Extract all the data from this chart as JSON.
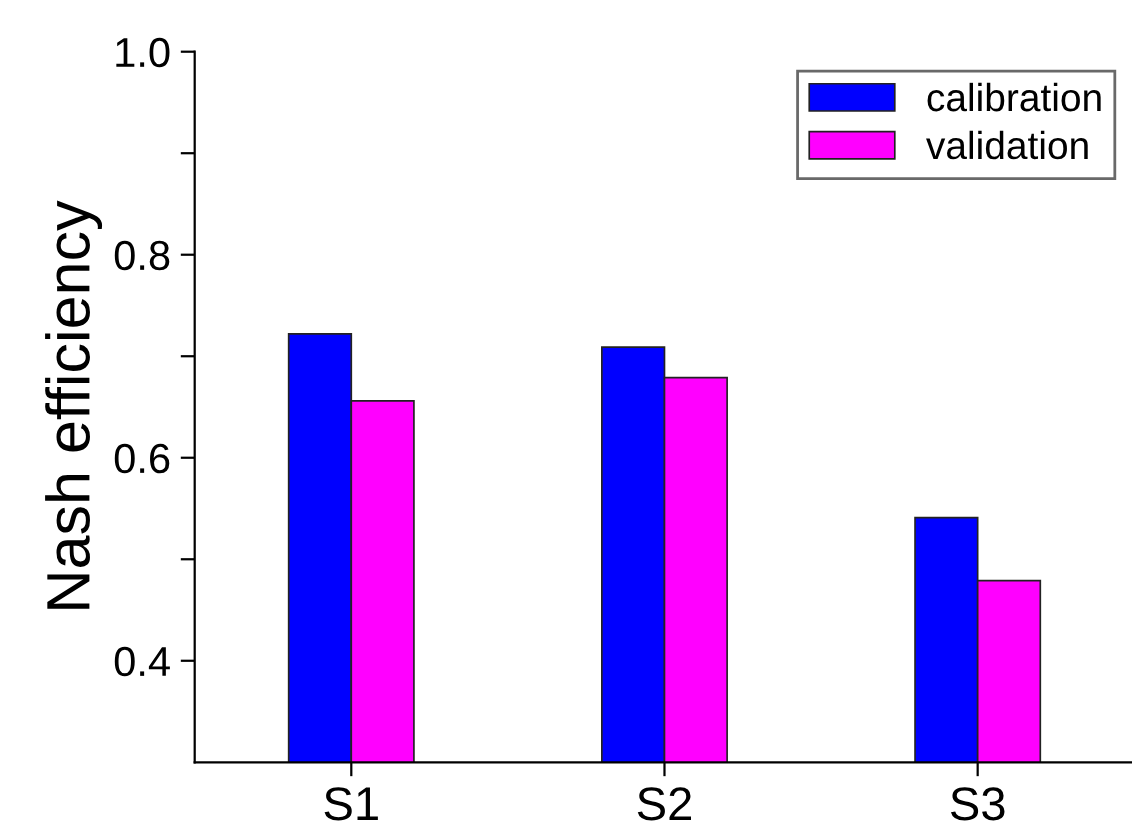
{
  "chart_data": {
    "type": "bar",
    "ylabel": "Nash efficiency",
    "categories": [
      "S1",
      "S2",
      "S3"
    ],
    "series": [
      {
        "name": "calibration",
        "color": "#0000ff",
        "values": [
          0.722,
          0.709,
          0.541
        ]
      },
      {
        "name": "validation",
        "color": "#ff00ff",
        "values": [
          0.656,
          0.679,
          0.479
        ]
      }
    ],
    "ylim": [
      0.3,
      1.0
    ],
    "yticks": [
      {
        "value": 0.4,
        "label": "0.4"
      },
      {
        "value": 0.5,
        "label": null
      },
      {
        "value": 0.6,
        "label": "0.6"
      },
      {
        "value": 0.7,
        "label": null
      },
      {
        "value": 0.8,
        "label": "0.8"
      },
      {
        "value": 0.9,
        "label": null
      },
      {
        "value": 1.0,
        "label": "1.0"
      }
    ],
    "grid": false,
    "legend": "top right"
  }
}
